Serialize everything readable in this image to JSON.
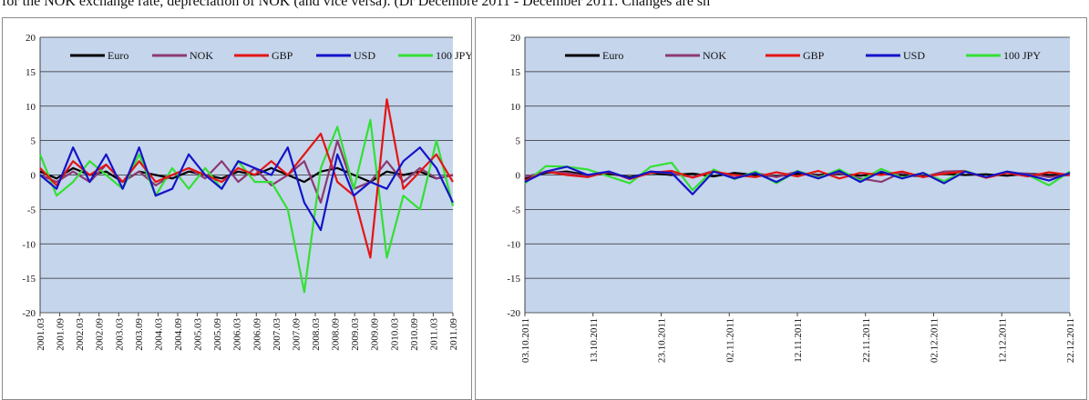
{
  "caption": {
    "text": "for the NOK exchange rate, depreciation of NOK (and vice versa). (Dr Decembre 2011 - December 2011. Changes are sh"
  },
  "colors": {
    "plot_bg": "#c5d5ec",
    "grid": "#2b2b2b",
    "Euro": "#000000",
    "NOK": "#8b3a72",
    "GBP": "#e41414",
    "USD": "#1414c8",
    "100 JPY": "#33e033"
  },
  "chart_data": [
    {
      "type": "line",
      "title": "",
      "xlabel": "",
      "ylabel": "",
      "ylim": [
        -20,
        20
      ],
      "yticks": [
        20,
        15,
        10,
        5,
        0,
        -5,
        -10,
        -15,
        -20
      ],
      "x_tick_labels": [
        "2001.03",
        "2001.09",
        "2002.03",
        "2002.09",
        "2003.03",
        "2003.09",
        "2004.03",
        "2004.09",
        "2005.03",
        "2005.09",
        "2006.03",
        "2006.09",
        "2007.03",
        "2007.09",
        "2008.03",
        "2008.09",
        "2009.03",
        "2009.09",
        "2010.03",
        "2010.09",
        "2011.03",
        "2011.09"
      ],
      "legend": [
        "Euro",
        "NOK",
        "GBP",
        "USD",
        "100 JPY"
      ],
      "legend_position": "top",
      "grid": true,
      "x": [
        "2001.03",
        "2001.09",
        "2002.03",
        "2002.09",
        "2003.03",
        "2003.09",
        "2004.03",
        "2004.09",
        "2005.03",
        "2005.09",
        "2006.03",
        "2006.09",
        "2007.03",
        "2007.09",
        "2008.03",
        "2008.06",
        "2008.09",
        "2008.12",
        "2009.03",
        "2009.06",
        "2009.09",
        "2009.12",
        "2010.03",
        "2010.09",
        "2011.03",
        "2011.09"
      ],
      "series": [
        {
          "name": "Euro",
          "values": [
            0.5,
            -0.5,
            1,
            0,
            0.5,
            -1,
            0.5,
            0,
            -0.5,
            0.5,
            0,
            -0.5,
            0.5,
            0,
            1,
            0,
            -1,
            0.5,
            1,
            0,
            -1,
            0.5,
            0,
            0.5,
            -0.5,
            0
          ]
        },
        {
          "name": "NOK",
          "values": [
            0,
            -1,
            0.5,
            -1,
            1.5,
            -1,
            0.5,
            -1.5,
            0,
            1,
            -0.5,
            2,
            -1,
            1,
            -1.5,
            0,
            2,
            -4,
            5,
            -2,
            -1,
            2,
            -1,
            1,
            -0.5,
            0
          ]
        },
        {
          "name": "GBP",
          "values": [
            1,
            -1.5,
            2,
            0,
            1.5,
            -1,
            2,
            -1,
            0,
            1,
            0,
            -1,
            1,
            0,
            2,
            0,
            3,
            6,
            -1,
            -3,
            -12,
            11,
            -2,
            0.5,
            3,
            -1
          ]
        },
        {
          "name": "USD",
          "values": [
            0,
            -2,
            4,
            -1,
            3,
            -2,
            4,
            -3,
            -2,
            3,
            0,
            -2,
            2,
            1,
            0,
            4,
            -4,
            -8,
            3,
            -3,
            -1,
            -2,
            2,
            4,
            1,
            -4
          ]
        },
        {
          "name": "100 JPY",
          "values": [
            3,
            -3,
            -1,
            2,
            0,
            -2,
            3,
            -3,
            1,
            -2,
            1,
            -2,
            2,
            -1,
            -1,
            -5,
            -17,
            1,
            7,
            -2,
            8,
            -12,
            -3,
            -5,
            5,
            -4.5
          ]
        }
      ]
    },
    {
      "type": "line",
      "title": "",
      "xlabel": "",
      "ylabel": "",
      "ylim": [
        -20,
        20
      ],
      "yticks": [
        20,
        15,
        10,
        5,
        0,
        -5,
        -10,
        -15,
        -20
      ],
      "x_tick_labels": [
        "03.10.2011",
        "13.10.2011",
        "23.10.2011",
        "02.11.2011",
        "12.11.2011",
        "22.11.2011",
        "02.12.2011",
        "12.12.2011",
        "22.12.2011"
      ],
      "legend": [
        "Euro",
        "NOK",
        "GBP",
        "USD",
        "100 JPY"
      ],
      "legend_position": "top",
      "grid": true,
      "x": [
        "03.10.2011",
        "06.10.2011",
        "10.10.2011",
        "13.10.2011",
        "17.10.2011",
        "20.10.2011",
        "24.10.2011",
        "27.10.2011",
        "31.10.2011",
        "02.11.2011",
        "04.11.2011",
        "08.11.2011",
        "12.11.2011",
        "15.11.2011",
        "18.11.2011",
        "22.11.2011",
        "25.11.2011",
        "29.11.2011",
        "02.12.2011",
        "06.12.2011",
        "09.12.2011",
        "12.12.2011",
        "15.12.2011",
        "19.12.2011",
        "22.12.2011",
        "26.12.2011",
        "30.12.2011"
      ],
      "series": [
        {
          "name": "Euro",
          "values": [
            -0.5,
            0.3,
            0.5,
            0,
            0.2,
            -0.3,
            0.3,
            0,
            0.2,
            -0.2,
            0.3,
            0,
            -0.2,
            0.2,
            0,
            0.2,
            -0.1,
            0.2,
            0,
            -0.2,
            0.2,
            0,
            0.1,
            -0.1,
            0.2,
            0,
            0
          ]
        },
        {
          "name": "NOK",
          "values": [
            -0.3,
            0.5,
            0.3,
            -0.2,
            0.4,
            -0.5,
            0.5,
            0.2,
            -0.3,
            0.6,
            -0.4,
            0.3,
            -0.3,
            0.5,
            -0.2,
            0.3,
            -0.5,
            -1,
            0.4,
            -0.3,
            0.5,
            0.6,
            -0.4,
            0.3,
            0.2,
            -0.3,
            0
          ]
        },
        {
          "name": "GBP",
          "values": [
            -0.8,
            0.5,
            0,
            -0.3,
            0.5,
            -0.6,
            0.3,
            0.6,
            -0.4,
            0.5,
            0,
            -0.3,
            0.4,
            -0.2,
            0.6,
            -0.5,
            0.3,
            0,
            0.5,
            -0.3,
            0.2,
            0.5,
            -0.4,
            0.3,
            -0.2,
            0.4,
            0
          ]
        },
        {
          "name": "USD",
          "values": [
            -1,
            0.5,
            1.2,
            0,
            0.5,
            -0.5,
            0.5,
            0.3,
            -2.8,
            0.5,
            -0.5,
            0.3,
            -1,
            0.5,
            -0.5,
            0.6,
            -1,
            0.5,
            -0.5,
            0.3,
            -1.2,
            0.5,
            -0.3,
            0.5,
            0,
            -0.8,
            0.3
          ]
        },
        {
          "name": "100 JPY",
          "values": [
            -1.2,
            1.3,
            1.2,
            0.8,
            -0.2,
            -1.2,
            1.2,
            1.8,
            -2.2,
            0.8,
            -0.6,
            0.5,
            -1.2,
            0.6,
            -0.4,
            0.8,
            -0.8,
            0.9,
            -0.4,
            0.3,
            -0.9,
            0.6,
            -0.4,
            0.5,
            0,
            -1.5,
            0.5
          ]
        }
      ]
    }
  ]
}
